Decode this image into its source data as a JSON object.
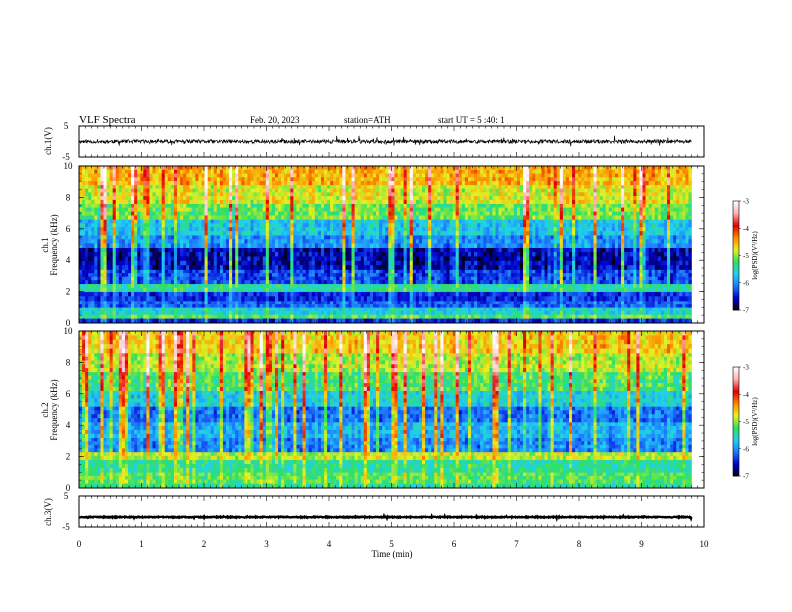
{
  "chart_data": {
    "type": "heatmap",
    "title": "VLF Spectra",
    "header": {
      "date": "Feb. 20, 2023",
      "station": "station=ATH",
      "start_ut": "start UT = 5 :40: 1"
    },
    "xlabel": "Time (min)",
    "x_ticks": [
      "0",
      "1",
      "2",
      "3",
      "4",
      "5",
      "6",
      "7",
      "8",
      "9",
      "10"
    ],
    "xlim": [
      0,
      10
    ],
    "data_end_min": 9.8,
    "panels": [
      {
        "kind": "waveform",
        "ylabel": "ch.1(V)",
        "y_ticks": [
          "5",
          "-5"
        ],
        "ylim": [
          -5,
          5
        ],
        "baseline_v": 0,
        "noise_amplitude_v": 1.2
      },
      {
        "kind": "spectrogram",
        "ylabel_top": "ch.1",
        "ylabel": "Frequency (kHz)",
        "y_ticks": [
          "0",
          "2",
          "4",
          "6",
          "8",
          "10"
        ],
        "ylim": [
          0,
          10
        ],
        "bands": [
          {
            "f_low": 0.0,
            "f_high": 0.05,
            "level": -7.0
          },
          {
            "f_low": 0.05,
            "f_high": 0.3,
            "level": -6.4
          },
          {
            "f_low": 0.3,
            "f_high": 0.55,
            "level": -5.2
          },
          {
            "f_low": 0.55,
            "f_high": 1.0,
            "level": -5.6
          },
          {
            "f_low": 1.0,
            "f_high": 1.4,
            "level": -6.2
          },
          {
            "f_low": 1.4,
            "f_high": 2.0,
            "level": -6.4
          },
          {
            "f_low": 2.0,
            "f_high": 2.5,
            "level": -5.4
          },
          {
            "f_low": 2.5,
            "f_high": 3.4,
            "level": -6.3
          },
          {
            "f_low": 3.4,
            "f_high": 4.8,
            "level": -6.6
          },
          {
            "f_low": 4.8,
            "f_high": 5.6,
            "level": -6.0
          },
          {
            "f_low": 5.6,
            "f_high": 6.6,
            "level": -5.7
          },
          {
            "f_low": 6.6,
            "f_high": 7.6,
            "level": -5.1
          },
          {
            "f_low": 7.6,
            "f_high": 8.8,
            "level": -4.8
          },
          {
            "f_low": 8.8,
            "f_high": 10.0,
            "level": -4.5
          }
        ]
      },
      {
        "kind": "spectrogram",
        "ylabel_top": "ch.2",
        "ylabel": "Frequency (kHz)",
        "y_ticks": [
          "0",
          "2",
          "4",
          "6",
          "8",
          "10"
        ],
        "ylim": [
          0,
          10
        ],
        "bands": [
          {
            "f_low": 0.0,
            "f_high": 0.3,
            "level": -5.4
          },
          {
            "f_low": 0.3,
            "f_high": 1.0,
            "level": -5.2
          },
          {
            "f_low": 1.0,
            "f_high": 1.8,
            "level": -5.4
          },
          {
            "f_low": 1.8,
            "f_high": 2.3,
            "level": -4.9
          },
          {
            "f_low": 2.3,
            "f_high": 3.2,
            "level": -6.0
          },
          {
            "f_low": 3.2,
            "f_high": 4.2,
            "level": -5.8
          },
          {
            "f_low": 4.2,
            "f_high": 5.2,
            "level": -6.1
          },
          {
            "f_low": 5.2,
            "f_high": 6.2,
            "level": -5.6
          },
          {
            "f_low": 6.2,
            "f_high": 7.4,
            "level": -5.2
          },
          {
            "f_low": 7.4,
            "f_high": 8.6,
            "level": -4.9
          },
          {
            "f_low": 8.6,
            "f_high": 10.0,
            "level": -4.6
          }
        ]
      },
      {
        "kind": "waveform",
        "ylabel": "ch.3(V)",
        "y_ticks": [
          "5",
          "-5"
        ],
        "ylim": [
          -5,
          5
        ],
        "baseline_v": -1.8,
        "noise_amplitude_v": 0.3
      }
    ],
    "colorbar": {
      "label": "log(PSD)(V²/Hz)",
      "ticks": [
        "-3",
        "-4",
        "-5",
        "-6",
        "-7"
      ],
      "range": [
        -7,
        -3
      ],
      "colors": [
        "#000000",
        "#0000cc",
        "#1e78ff",
        "#20d0f0",
        "#30e060",
        "#e8f020",
        "#ff8a00",
        "#e00000",
        "#ffb0b0",
        "#ffffff"
      ]
    }
  }
}
